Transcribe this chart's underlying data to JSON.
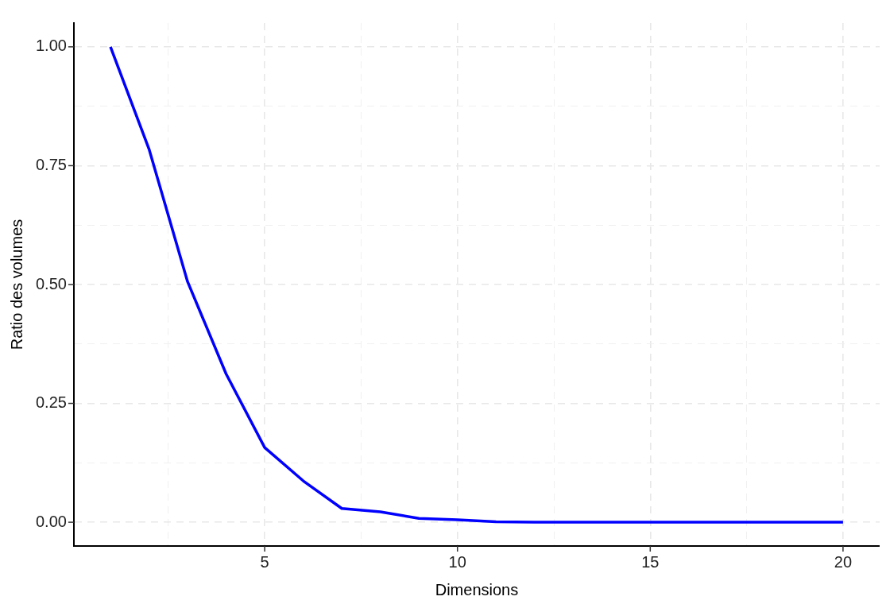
{
  "chart_data": {
    "type": "line",
    "xlabel": "Dimensions",
    "ylabel": "Ratio des volumes",
    "x": [
      1,
      2,
      3,
      4,
      5,
      6,
      7,
      8,
      9,
      10,
      11,
      12,
      13,
      14,
      15,
      16,
      17,
      18,
      19,
      20
    ],
    "series": [
      {
        "color": "#0000ff",
        "values": [
          1,
          0.785,
          0.506,
          0.312,
          0.157,
          0.087,
          0.029,
          0.022,
          0.008,
          0.005,
          0.001,
          0,
          0,
          0,
          0,
          0,
          0,
          0,
          0,
          0
        ]
      }
    ],
    "xlim": [
      0.05,
      20.95
    ],
    "ylim": [
      -0.05,
      1.05
    ],
    "xticks": [
      {
        "value": 2.5,
        "label": null
      },
      5,
      {
        "value": 7.5,
        "label": null
      },
      10,
      {
        "value": 12.5,
        "label": null
      },
      15,
      {
        "value": 17.5,
        "label": null
      },
      20
    ],
    "yticks": [
      {
        "value": 0,
        "label": "0.00"
      },
      {
        "value": 0.125,
        "label": null
      },
      {
        "value": 0.25,
        "label": "0.25"
      },
      {
        "value": 0.375,
        "label": null
      },
      {
        "value": 0.5,
        "label": "0.50"
      },
      {
        "value": 0.625,
        "label": null
      },
      {
        "value": 0.75,
        "label": "0.75"
      },
      {
        "value": 0.875,
        "label": null
      },
      {
        "value": 1,
        "label": "1.00"
      }
    ],
    "grid": true,
    "legend": false,
    "marker": "none",
    "line_style": "solid"
  }
}
